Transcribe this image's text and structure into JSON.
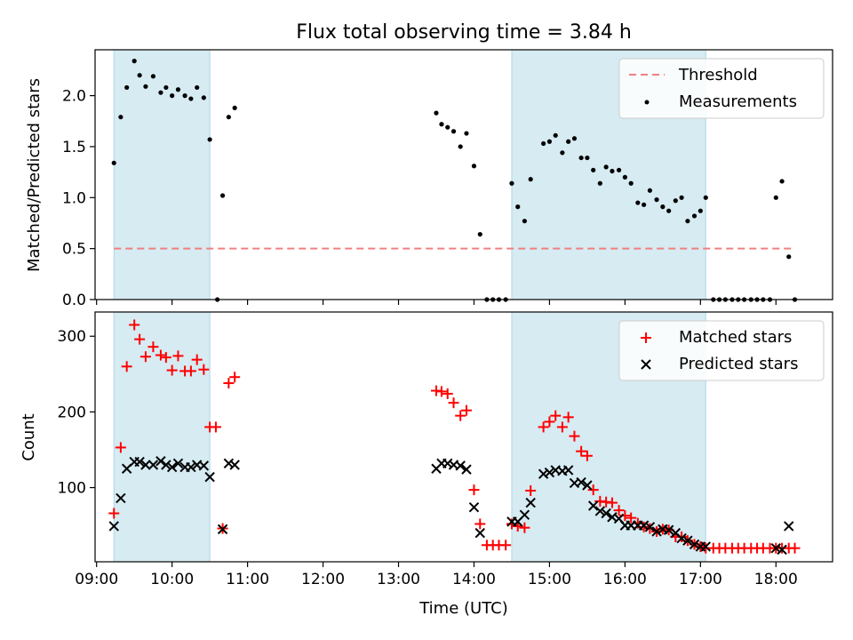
{
  "chart_data": [
    {
      "type": "scatter",
      "title": "Flux total observing time = 3.84 h",
      "xlabel": "",
      "ylabel": "Matched/Predicted stars",
      "xlim": [
        8.98,
        18.75
      ],
      "ylim": [
        0,
        2.45
      ],
      "yticks": [
        0.0,
        0.5,
        1.0,
        1.5,
        2.0
      ],
      "ytick_labels": [
        "0.0",
        "0.5",
        "1.0",
        "1.5",
        "2.0"
      ],
      "xticks": [
        9,
        10,
        11,
        12,
        13,
        14,
        15,
        16,
        17,
        18
      ],
      "shaded_intervals": [
        [
          9.23,
          10.5
        ],
        [
          14.5,
          17.07
        ]
      ],
      "threshold": {
        "value": 0.5,
        "x_range": [
          9.23,
          18.25
        ],
        "color": "#f08080"
      },
      "legend": {
        "position": "top-right",
        "entries": [
          "Threshold",
          "Measurements"
        ]
      },
      "series": [
        {
          "name": "Measurements",
          "color": "#000000",
          "x": [
            9.23,
            9.32,
            9.4,
            9.5,
            9.57,
            9.65,
            9.75,
            9.85,
            9.92,
            10.0,
            10.08,
            10.17,
            10.25,
            10.33,
            10.42,
            10.5,
            10.6,
            10.67,
            10.75,
            10.83,
            13.5,
            13.57,
            13.65,
            13.73,
            13.82,
            13.9,
            14.0,
            14.08,
            14.17,
            14.25,
            14.33,
            14.42,
            14.5,
            14.58,
            14.67,
            14.75,
            14.92,
            15.0,
            15.08,
            15.17,
            15.25,
            15.33,
            15.42,
            15.5,
            15.58,
            15.67,
            15.75,
            15.83,
            15.92,
            16.0,
            16.08,
            16.17,
            16.25,
            16.33,
            16.42,
            16.5,
            16.58,
            16.67,
            16.75,
            16.83,
            16.92,
            17.0,
            17.07,
            17.17,
            17.25,
            17.33,
            17.42,
            17.5,
            17.58,
            17.67,
            17.75,
            17.83,
            17.92,
            18.0,
            18.08,
            18.17,
            18.25
          ],
          "y": [
            1.34,
            1.79,
            2.08,
            2.34,
            2.2,
            2.09,
            2.19,
            2.03,
            2.08,
            2.0,
            2.06,
            2.0,
            1.97,
            2.08,
            1.98,
            1.57,
            0.0,
            1.02,
            1.79,
            1.88,
            1.83,
            1.72,
            1.69,
            1.65,
            1.5,
            1.63,
            1.31,
            0.64,
            0.0,
            0.0,
            0.0,
            0.0,
            1.14,
            0.91,
            0.77,
            1.18,
            1.53,
            1.55,
            1.61,
            1.44,
            1.55,
            1.58,
            1.39,
            1.39,
            1.27,
            1.14,
            1.3,
            1.26,
            1.27,
            1.2,
            1.14,
            0.95,
            0.93,
            1.07,
            0.98,
            0.91,
            0.87,
            0.97,
            1.0,
            0.77,
            0.82,
            0.87,
            1.0,
            0.0,
            0.0,
            0.0,
            0.0,
            0.0,
            0.0,
            0.0,
            0.0,
            0.0,
            0.0,
            1.0,
            1.16,
            0.42,
            0.0
          ]
        }
      ]
    },
    {
      "type": "scatter",
      "title": "",
      "xlabel": "Time (UTC)",
      "ylabel": "Count",
      "xlim": [
        8.98,
        18.75
      ],
      "ylim": [
        2,
        332
      ],
      "yticks": [
        100,
        200,
        300
      ],
      "ytick_labels": [
        "100",
        "200",
        "300"
      ],
      "xticks": [
        9,
        10,
        11,
        12,
        13,
        14,
        15,
        16,
        17,
        18
      ],
      "xtick_labels": [
        "09:00",
        "10:00",
        "11:00",
        "12:00",
        "13:00",
        "14:00",
        "15:00",
        "16:00",
        "17:00",
        "18:00"
      ],
      "shaded_intervals": [
        [
          9.23,
          10.5
        ],
        [
          14.5,
          17.07
        ]
      ],
      "legend": {
        "position": "top-right",
        "entries": [
          "Matched stars",
          "Predicted stars"
        ]
      },
      "series": [
        {
          "name": "Matched stars",
          "marker": "+",
          "color": "#ff0000",
          "x": [
            9.23,
            9.32,
            9.4,
            9.5,
            9.57,
            9.65,
            9.75,
            9.85,
            9.92,
            10.0,
            10.08,
            10.17,
            10.25,
            10.33,
            10.42,
            10.5,
            10.58,
            10.67,
            10.75,
            10.83,
            13.5,
            13.57,
            13.65,
            13.73,
            13.82,
            13.9,
            14.0,
            14.08,
            14.17,
            14.25,
            14.33,
            14.42,
            14.5,
            14.58,
            14.67,
            14.75,
            14.92,
            15.0,
            15.08,
            15.17,
            15.25,
            15.33,
            15.42,
            15.5,
            15.58,
            15.67,
            15.75,
            15.83,
            15.92,
            16.0,
            16.08,
            16.17,
            16.25,
            16.33,
            16.42,
            16.5,
            16.58,
            16.67,
            16.75,
            16.83,
            16.92,
            17.0,
            17.07,
            17.17,
            17.25,
            17.33,
            17.42,
            17.5,
            17.58,
            17.67,
            17.75,
            17.83,
            17.92,
            18.0,
            18.08,
            18.17,
            18.25
          ],
          "y": [
            66,
            153,
            260,
            315,
            296,
            273,
            286,
            275,
            272,
            255,
            274,
            254,
            254,
            269,
            256,
            180,
            180,
            46,
            238,
            246,
            228,
            227,
            224,
            212,
            195,
            202,
            97,
            52,
            24,
            24,
            24,
            24,
            52,
            49,
            47,
            96,
            180,
            187,
            195,
            180,
            193,
            168,
            148,
            142,
            97,
            82,
            81,
            80,
            70,
            63,
            60,
            53,
            48,
            46,
            42,
            45,
            44,
            35,
            35,
            30,
            25,
            22,
            20,
            20,
            20,
            20,
            20,
            20,
            20,
            20,
            20,
            20,
            20,
            20,
            20,
            20,
            20
          ]
        },
        {
          "name": "Predicted stars",
          "marker": "x",
          "color": "#000000",
          "x": [
            9.23,
            9.32,
            9.4,
            9.5,
            9.57,
            9.65,
            9.75,
            9.85,
            9.92,
            10.0,
            10.08,
            10.17,
            10.25,
            10.33,
            10.42,
            10.5,
            10.67,
            10.75,
            10.83,
            13.5,
            13.57,
            13.65,
            13.73,
            13.82,
            13.9,
            14.0,
            14.08,
            14.5,
            14.58,
            14.67,
            14.75,
            14.92,
            15.0,
            15.08,
            15.17,
            15.25,
            15.33,
            15.42,
            15.5,
            15.58,
            15.67,
            15.75,
            15.83,
            15.92,
            16.0,
            16.08,
            16.17,
            16.25,
            16.33,
            16.42,
            16.5,
            16.58,
            16.67,
            16.75,
            16.83,
            16.92,
            17.0,
            17.07,
            18.0,
            18.08,
            18.17
          ],
          "y": [
            49,
            86,
            125,
            134,
            134,
            130,
            130,
            135,
            130,
            127,
            132,
            127,
            127,
            130,
            129,
            114,
            45,
            132,
            130,
            125,
            132,
            132,
            130,
            129,
            124,
            74,
            40,
            55,
            55,
            64,
            80,
            118,
            120,
            123,
            122,
            123,
            106,
            107,
            103,
            76,
            69,
            66,
            61,
            59,
            50,
            50,
            50,
            50,
            48,
            42,
            45,
            44,
            40,
            33,
            30,
            25,
            22,
            22,
            20,
            18,
            49
          ]
        }
      ]
    }
  ],
  "legend_labels": {
    "threshold": "Threshold",
    "measurements": "Measurements",
    "matched": "Matched stars",
    "predicted": "Predicted stars"
  },
  "colors": {
    "shade": "#add8e6",
    "threshold": "#f08080",
    "matched": "#ff0000",
    "predicted": "#000000",
    "measurements": "#000000"
  }
}
